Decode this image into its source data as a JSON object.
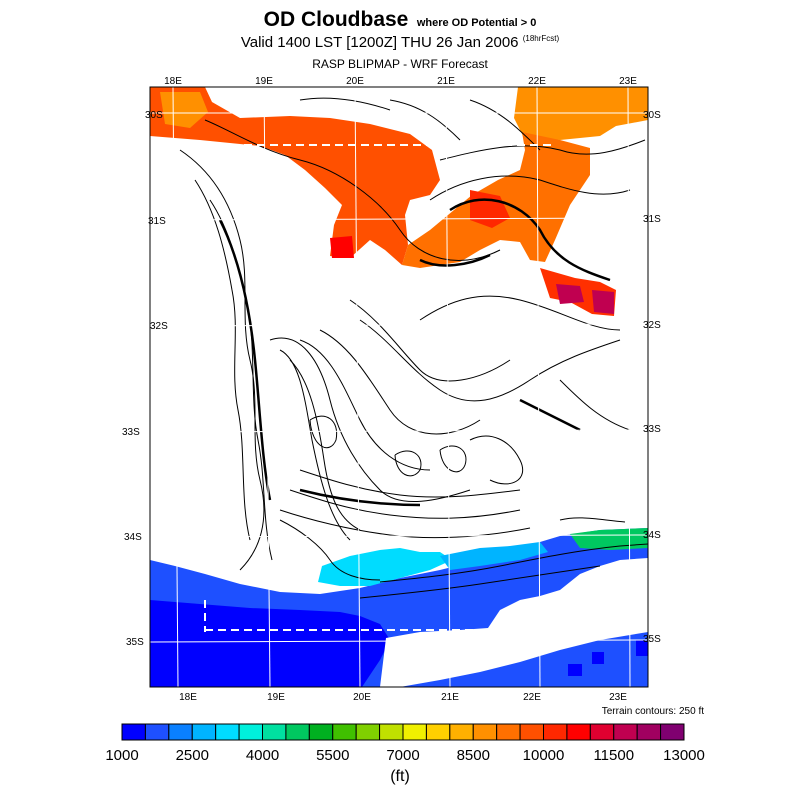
{
  "title": {
    "main": "OD Cloudbase",
    "qualifier": "where OD Potential > 0",
    "valid": "Valid 1400 LST [1200Z] THU 26 Jan 2006",
    "forecast_hours": "(18hrFcst)",
    "source": "RASP BLIPMAP - WRF Forecast"
  },
  "map": {
    "lon_labels": [
      "18E",
      "19E",
      "20E",
      "21E",
      "22E",
      "23E"
    ],
    "lat_labels": [
      "30S",
      "31S",
      "32S",
      "33S",
      "34S",
      "35S"
    ],
    "terrain_note": "Terrain contours: 250 ft",
    "colors": {
      "background": "#ffffff",
      "contour": "#000000",
      "grid": "#ffffff"
    }
  },
  "legend": {
    "colors": [
      "#0000ff",
      "#1e50ff",
      "#0a80ff",
      "#00b4ff",
      "#00dcff",
      "#00f0dc",
      "#00e0a0",
      "#00c860",
      "#00b020",
      "#40c000",
      "#80d000",
      "#c0e000",
      "#f0f000",
      "#ffd000",
      "#ffb000",
      "#ff9000",
      "#ff7000",
      "#ff5000",
      "#ff2800",
      "#ff0000",
      "#e00030",
      "#c00050",
      "#a00060",
      "#800070"
    ],
    "labels": [
      "1000",
      "2500",
      "4000",
      "5500",
      "7000",
      "8500",
      "10000",
      "11500",
      "13000"
    ],
    "units": "(ft)"
  }
}
